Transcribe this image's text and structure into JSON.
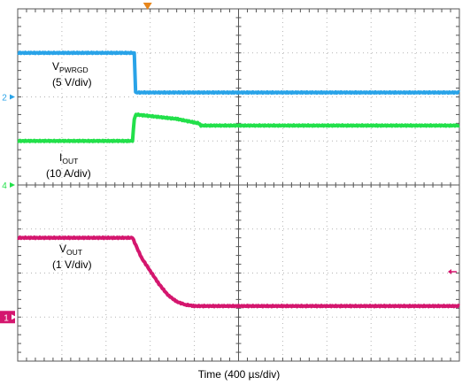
{
  "chart_data": {
    "type": "line",
    "title": "",
    "xlabel": "Time (400 µs/div)",
    "ylabel": "",
    "grid": true,
    "x_divisions": 10,
    "y_divisions": 8,
    "x_unit": "div",
    "trigger_x": 2.94,
    "series": [
      {
        "key": "vpwrgd",
        "name_main": "V",
        "name_sub": "PWRGD",
        "scale": "(5 V/div)",
        "channel_marker": "2",
        "marker_level": 6.0,
        "color": "#29a3e8",
        "x": [
          0,
          2.64,
          2.67,
          10
        ],
        "y": [
          7.0,
          7.0,
          6.1,
          6.1
        ]
      },
      {
        "key": "iout",
        "name_main": "I",
        "name_sub": "OUT",
        "scale": "(10 A/div)",
        "channel_marker": "4",
        "marker_level": 4.0,
        "color": "#22e04a",
        "x": [
          0,
          2.6,
          2.64,
          2.68,
          3.6,
          4.1,
          4.15,
          10
        ],
        "y": [
          5.0,
          5.0,
          5.5,
          5.6,
          5.5,
          5.4,
          5.35,
          5.35
        ]
      },
      {
        "key": "vout",
        "name_main": "V",
        "name_sub": "OUT",
        "scale": "(1 V/div)",
        "channel_marker": "1",
        "marker_level": 1.0,
        "color": "#d4166e",
        "x": [
          0,
          2.6,
          2.8,
          3.0,
          3.2,
          3.4,
          3.6,
          3.8,
          4.0,
          10
        ],
        "y": [
          2.8,
          2.8,
          2.35,
          2.05,
          1.75,
          1.5,
          1.35,
          1.28,
          1.25,
          1.25
        ]
      }
    ]
  },
  "colors": {
    "grid": "#b3b3b3",
    "axis": "#555555",
    "trigger": "#e8861a",
    "ref_marker": "#d4166e"
  }
}
